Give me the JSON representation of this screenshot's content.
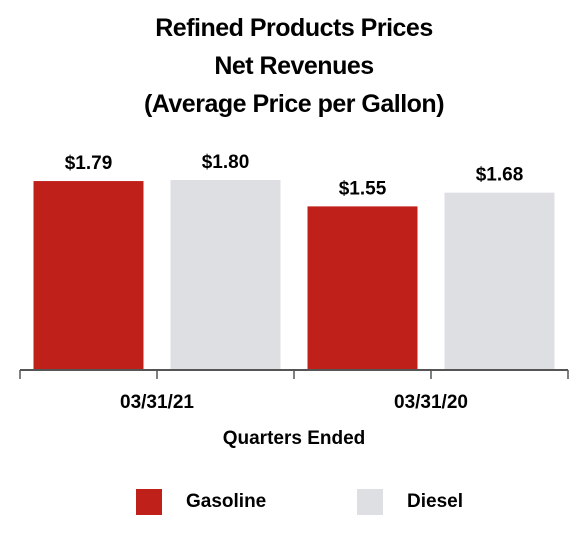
{
  "chart_data": {
    "type": "bar",
    "title_lines": [
      "Refined Products Prices",
      "Net Revenues",
      "(Average Price per Gallon)"
    ],
    "xlabel": "Quarters Ended",
    "ylabel": "",
    "categories": [
      "03/31/21",
      "03/31/20"
    ],
    "series": [
      {
        "name": "Gasoline",
        "color": "#c0201a",
        "values": [
          1.79,
          1.55
        ],
        "labels": [
          "$1.79",
          "$1.55"
        ]
      },
      {
        "name": "Diesel",
        "color": "#dedfe3",
        "values": [
          1.8,
          1.68
        ],
        "labels": [
          "$1.80",
          "$1.68"
        ]
      }
    ],
    "ylim": [
      0,
      1.8
    ],
    "grid": false,
    "legend_position": "bottom"
  }
}
